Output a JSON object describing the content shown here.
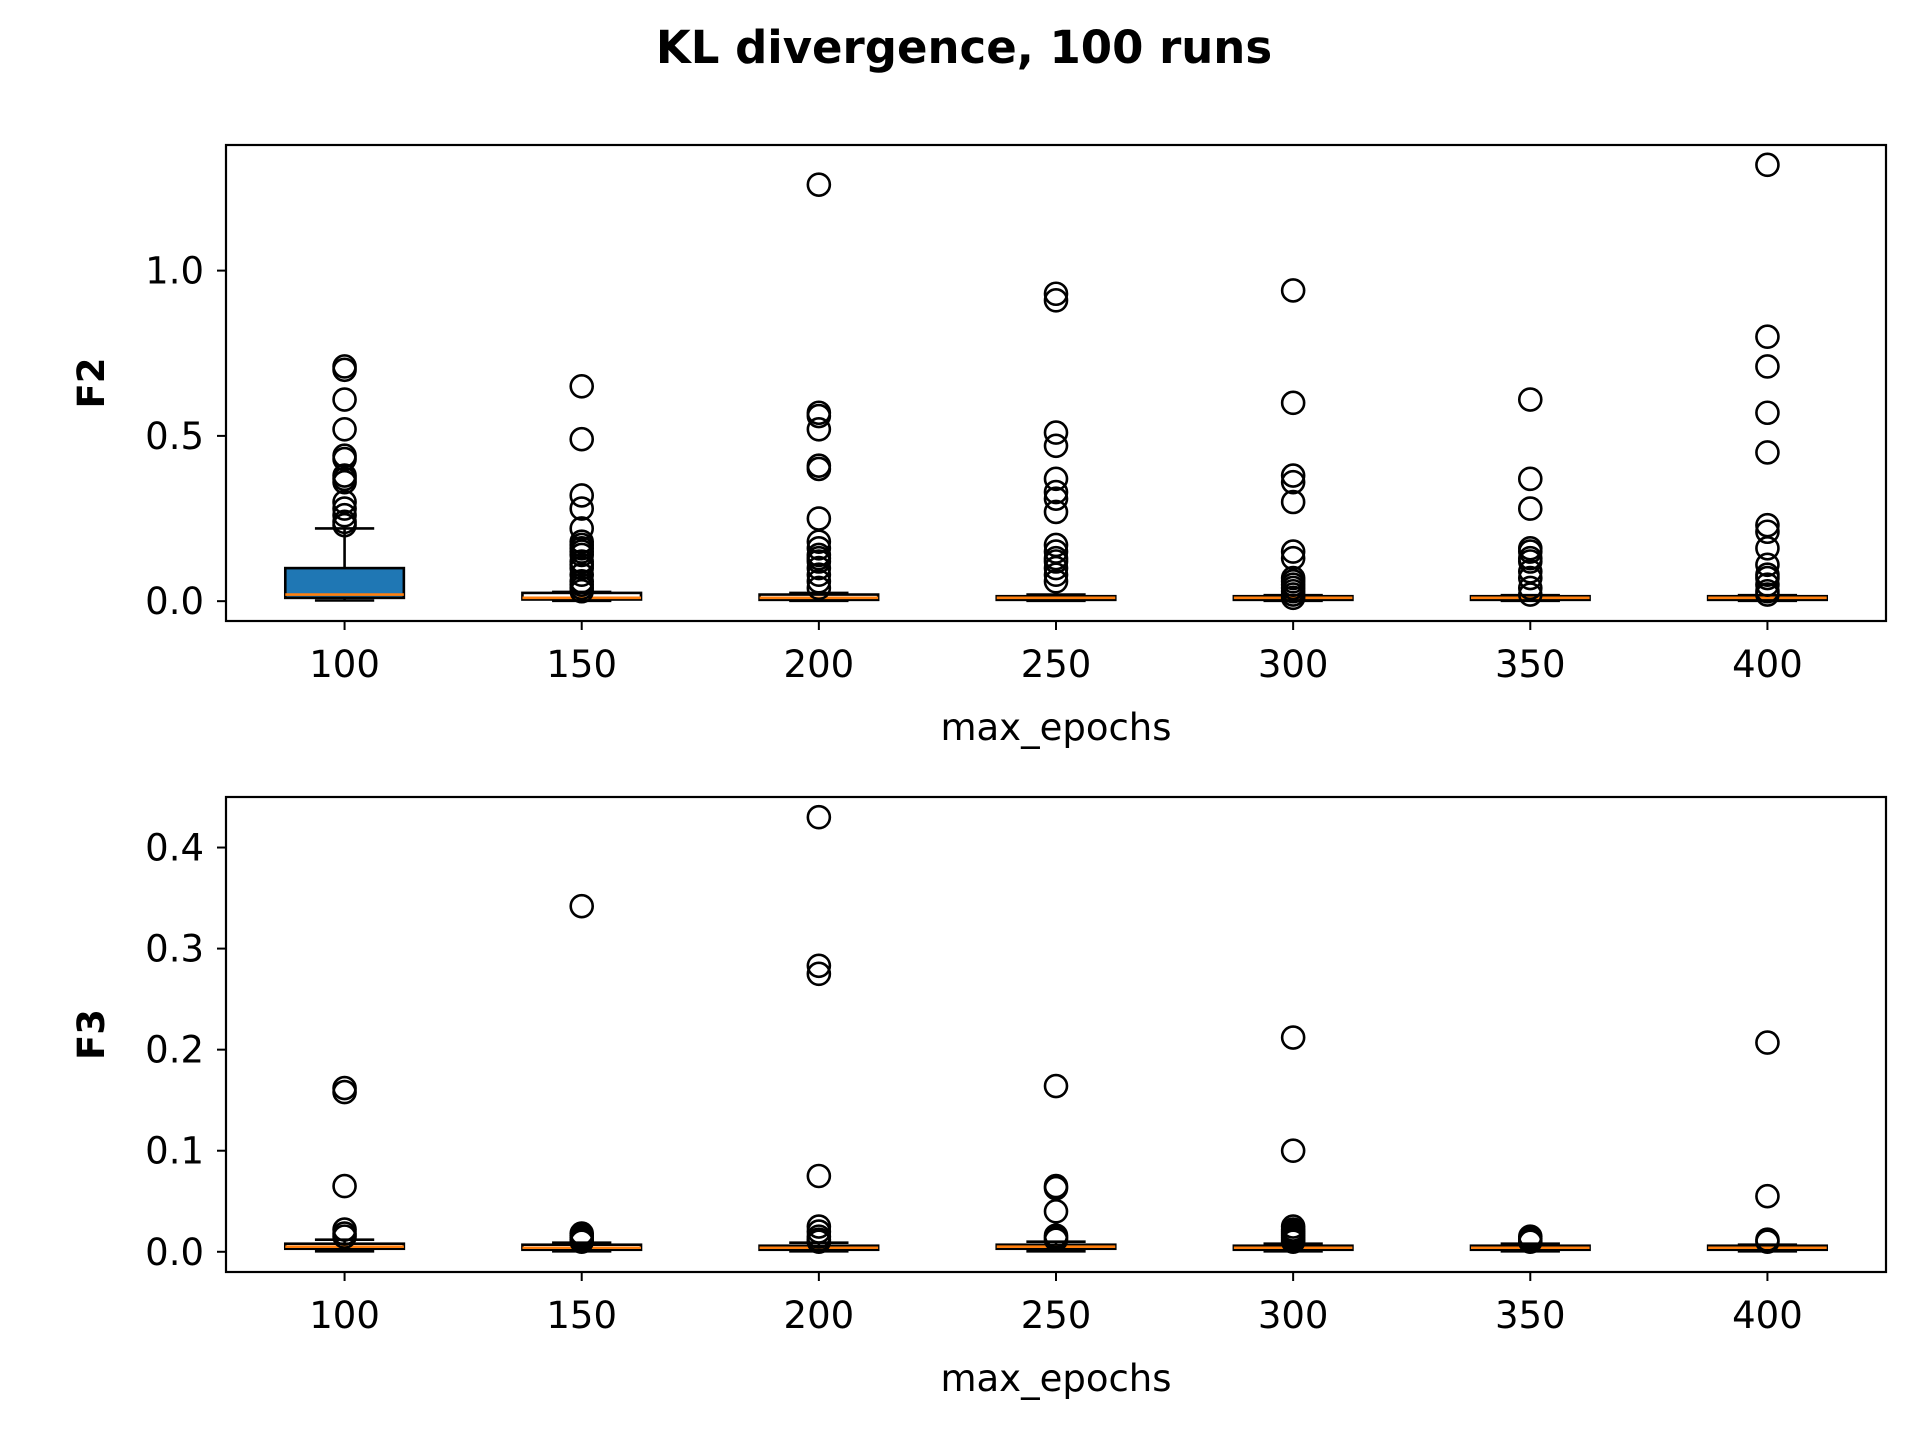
{
  "figure": {
    "title": "KL divergence, 100 runs"
  },
  "colors": {
    "box_fill": "#1f77b4",
    "median": "#ff7f0e",
    "stroke": "#000000",
    "background": "#ffffff"
  },
  "chart_data": [
    {
      "type": "box",
      "title": "",
      "xlabel": "max_epochs",
      "ylabel": "F2",
      "categories": [
        "100",
        "150",
        "200",
        "250",
        "300",
        "350",
        "400"
      ],
      "ylim": [
        -0.06,
        1.38
      ],
      "yticks": [
        0.0,
        0.5,
        1.0
      ],
      "ytick_labels": [
        "0.0",
        "0.5",
        "1.0"
      ],
      "grid": false,
      "boxes": [
        {
          "category": "100",
          "q1": 0.01,
          "median": 0.02,
          "q3": 0.1,
          "whisker_low": 0.002,
          "whisker_high": 0.22,
          "filled": true,
          "outliers": [
            0.7,
            0.71,
            0.61,
            0.52,
            0.44,
            0.43,
            0.38,
            0.37,
            0.36,
            0.3,
            0.28,
            0.26,
            0.24,
            0.23
          ]
        },
        {
          "category": "150",
          "q1": 0.005,
          "median": 0.01,
          "q3": 0.025,
          "whisker_low": 0.001,
          "whisker_high": 0.028,
          "filled": false,
          "outliers": [
            0.65,
            0.49,
            0.32,
            0.28,
            0.22,
            0.18,
            0.17,
            0.16,
            0.15,
            0.14,
            0.12,
            0.11,
            0.1,
            0.08,
            0.06,
            0.05,
            0.04,
            0.03
          ]
        },
        {
          "category": "200",
          "q1": 0.004,
          "median": 0.01,
          "q3": 0.02,
          "whisker_low": 0.001,
          "whisker_high": 0.025,
          "filled": false,
          "outliers": [
            1.26,
            0.57,
            0.56,
            0.52,
            0.41,
            0.4,
            0.25,
            0.18,
            0.16,
            0.14,
            0.13,
            0.12,
            0.1,
            0.08,
            0.06,
            0.04
          ]
        },
        {
          "category": "250",
          "q1": 0.004,
          "median": 0.01,
          "q3": 0.015,
          "whisker_low": 0.001,
          "whisker_high": 0.02,
          "filled": false,
          "outliers": [
            0.93,
            0.91,
            0.51,
            0.47,
            0.37,
            0.33,
            0.31,
            0.27,
            0.17,
            0.15,
            0.13,
            0.12,
            0.1,
            0.08,
            0.06
          ]
        },
        {
          "category": "300",
          "q1": 0.004,
          "median": 0.01,
          "q3": 0.015,
          "whisker_low": 0.001,
          "whisker_high": 0.018,
          "filled": false,
          "outliers": [
            0.94,
            0.6,
            0.38,
            0.36,
            0.3,
            0.15,
            0.13,
            0.07,
            0.06,
            0.05,
            0.04,
            0.03,
            0.02,
            0.01
          ]
        },
        {
          "category": "350",
          "q1": 0.004,
          "median": 0.01,
          "q3": 0.015,
          "whisker_low": 0.001,
          "whisker_high": 0.018,
          "filled": false,
          "outliers": [
            0.61,
            0.37,
            0.28,
            0.16,
            0.15,
            0.13,
            0.12,
            0.09,
            0.07,
            0.04,
            0.02
          ]
        },
        {
          "category": "400",
          "q1": 0.004,
          "median": 0.01,
          "q3": 0.015,
          "whisker_low": 0.001,
          "whisker_high": 0.018,
          "filled": false,
          "outliers": [
            1.32,
            0.8,
            0.71,
            0.57,
            0.45,
            0.23,
            0.21,
            0.16,
            0.11,
            0.08,
            0.07,
            0.05,
            0.03,
            0.02
          ]
        }
      ]
    },
    {
      "type": "box",
      "title": "",
      "xlabel": "max_epochs",
      "ylabel": "F3",
      "categories": [
        "100",
        "150",
        "200",
        "250",
        "300",
        "350",
        "400"
      ],
      "ylim": [
        -0.02,
        0.45
      ],
      "yticks": [
        0.0,
        0.1,
        0.2,
        0.3,
        0.4
      ],
      "ytick_labels": [
        "0.0",
        "0.1",
        "0.2",
        "0.3",
        "0.4"
      ],
      "grid": false,
      "boxes": [
        {
          "category": "100",
          "q1": 0.003,
          "median": 0.005,
          "q3": 0.008,
          "whisker_low": 0.0005,
          "whisker_high": 0.012,
          "filled": false,
          "outliers": [
            0.162,
            0.158,
            0.065,
            0.022,
            0.018,
            0.015
          ]
        },
        {
          "category": "150",
          "q1": 0.002,
          "median": 0.004,
          "q3": 0.007,
          "whisker_low": 0.0005,
          "whisker_high": 0.009,
          "filled": false,
          "outliers": [
            0.342,
            0.018,
            0.016,
            0.014,
            0.012,
            0.01
          ]
        },
        {
          "category": "200",
          "q1": 0.002,
          "median": 0.004,
          "q3": 0.006,
          "whisker_low": 0.0005,
          "whisker_high": 0.009,
          "filled": false,
          "outliers": [
            0.43,
            0.283,
            0.275,
            0.075,
            0.025,
            0.02,
            0.015,
            0.012,
            0.01
          ]
        },
        {
          "category": "250",
          "q1": 0.003,
          "median": 0.005,
          "q3": 0.007,
          "whisker_low": 0.0005,
          "whisker_high": 0.01,
          "filled": false,
          "outliers": [
            0.164,
            0.065,
            0.063,
            0.04,
            0.016,
            0.014,
            0.012
          ]
        },
        {
          "category": "300",
          "q1": 0.002,
          "median": 0.004,
          "q3": 0.006,
          "whisker_low": 0.0005,
          "whisker_high": 0.008,
          "filled": false,
          "outliers": [
            0.212,
            0.1,
            0.025,
            0.022,
            0.02,
            0.018,
            0.016,
            0.014,
            0.012,
            0.01
          ]
        },
        {
          "category": "350",
          "q1": 0.002,
          "median": 0.004,
          "q3": 0.006,
          "whisker_low": 0.0005,
          "whisker_high": 0.008,
          "filled": false,
          "outliers": [
            0.015,
            0.013,
            0.011,
            0.01
          ]
        },
        {
          "category": "400",
          "q1": 0.002,
          "median": 0.004,
          "q3": 0.006,
          "whisker_low": 0.0005,
          "whisker_high": 0.007,
          "filled": false,
          "outliers": [
            0.207,
            0.055,
            0.012,
            0.01
          ]
        }
      ]
    }
  ]
}
